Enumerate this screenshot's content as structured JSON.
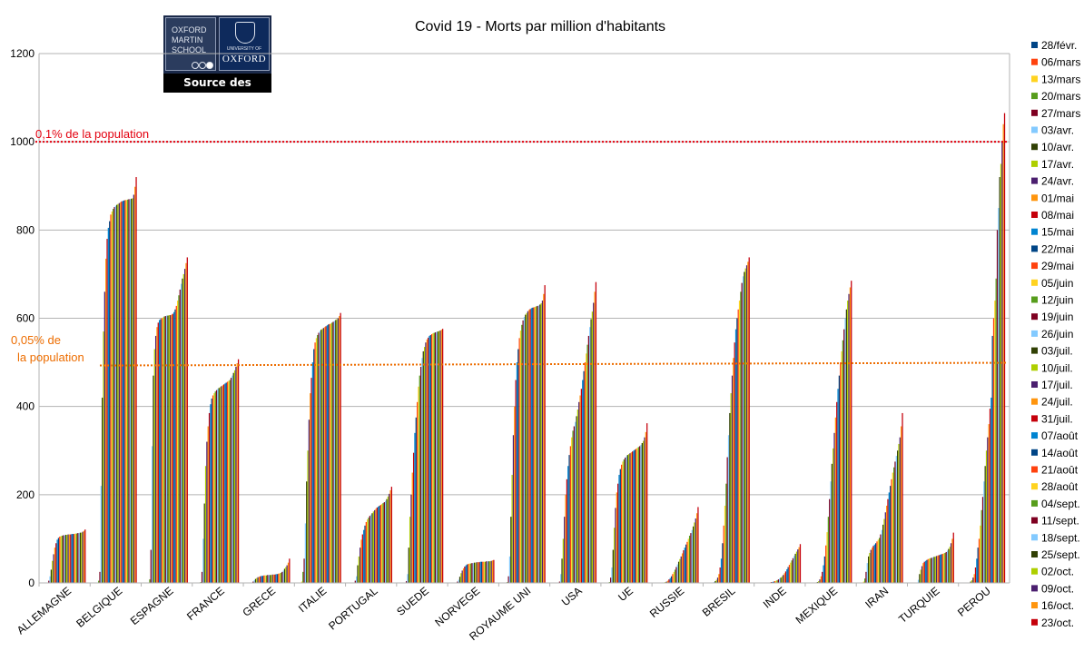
{
  "logo": {
    "oxford_martin_school": "OXFORD\nMARTIN\nSCHOOL",
    "university_small": "UNIVERSITY OF",
    "oxford": "OXFORD",
    "source_label": "Source des données"
  },
  "annotations": {
    "threshold_high": {
      "label": "0,1% de la population",
      "value": 1000,
      "color": "#e3000f"
    },
    "threshold_low": {
      "label_line1": "0,05% de",
      "label_line2": "la population",
      "value": 497,
      "color": "#ed6d00"
    }
  },
  "chart_data": {
    "type": "bar",
    "title": "Covid 19 - Morts par million d'habitants",
    "xlabel": "",
    "ylabel": "",
    "ylim": [
      0,
      1200
    ],
    "yticks": [
      0,
      200,
      400,
      600,
      800,
      1000,
      1200
    ],
    "grid": "horizontal",
    "legend_position": "right",
    "categories": [
      "ALLEMAGNE",
      "BELGIQUE",
      "ESPAGNE",
      "FRANCE",
      "GRECE",
      "ITALIE",
      "PORTUGAL",
      "SUEDE",
      "NORVEGE",
      "ROYAUME UNI",
      "USA",
      "UE",
      "RUSSIE",
      "BRESIL",
      "INDE",
      "MEXIQUE",
      "IRAN",
      "TURQUIE",
      "PEROU"
    ],
    "series_names": [
      "28/févr.",
      "06/mars",
      "13/mars",
      "20/mars",
      "27/mars",
      "03/avr.",
      "10/avr.",
      "17/avr.",
      "24/avr.",
      "01/mai",
      "08/mai",
      "15/mai",
      "22/mai",
      "29/mai",
      "05/juin",
      "12/juin",
      "19/juin",
      "26/juin",
      "03/juil.",
      "10/juil.",
      "17/juil.",
      "24/juil.",
      "31/juil.",
      "07/août",
      "14/août",
      "21/août",
      "28/août",
      "04/sept.",
      "11/sept.",
      "18/sept.",
      "25/sept.",
      "02/oct.",
      "09/oct.",
      "16/oct.",
      "23/oct."
    ],
    "series_colors": [
      "#004586",
      "#ff420e",
      "#ffd320",
      "#579d1c",
      "#7e0021",
      "#83caff",
      "#314004",
      "#aecf00",
      "#4b1f6f",
      "#ff950e",
      "#c5000b",
      "#0084d1"
    ],
    "values": {
      "ALLEMAGNE": [
        0,
        0,
        0,
        1,
        5,
        15,
        30,
        50,
        65,
        80,
        90,
        98,
        102,
        105,
        106,
        107,
        108,
        108,
        109,
        109,
        110,
        110,
        110,
        111,
        111,
        111,
        112,
        112,
        113,
        113,
        114,
        114,
        116,
        118,
        121
      ],
      "BELGIQUE": [
        0,
        0,
        1,
        5,
        25,
        220,
        420,
        570,
        660,
        735,
        780,
        805,
        820,
        835,
        842,
        848,
        852,
        855,
        857,
        859,
        861,
        863,
        865,
        866,
        867,
        868,
        868,
        869,
        870,
        870,
        871,
        872,
        880,
        898,
        920
      ],
      "ESPAGNE": [
        0,
        0,
        0,
        8,
        75,
        310,
        470,
        530,
        560,
        580,
        590,
        596,
        598,
        600,
        602,
        604,
        605,
        606,
        606,
        607,
        607,
        608,
        610,
        614,
        620,
        628,
        640,
        652,
        665,
        678,
        690,
        700,
        712,
        725,
        738
      ],
      "FRANCE": [
        0,
        0,
        0,
        2,
        25,
        100,
        180,
        265,
        320,
        355,
        385,
        405,
        418,
        425,
        430,
        434,
        437,
        440,
        442,
        444,
        446,
        448,
        450,
        452,
        454,
        456,
        458,
        460,
        465,
        470,
        476,
        482,
        490,
        498,
        507
      ],
      "GRECE": [
        0,
        0,
        0,
        1,
        3,
        6,
        9,
        11,
        13,
        14,
        15,
        16,
        16,
        17,
        17,
        17,
        18,
        18,
        18,
        18,
        19,
        19,
        19,
        20,
        20,
        21,
        22,
        23,
        25,
        28,
        32,
        36,
        40,
        46,
        55
      ],
      "ITALIE": [
        0,
        1,
        3,
        25,
        55,
        135,
        230,
        300,
        370,
        430,
        465,
        500,
        530,
        545,
        555,
        562,
        567,
        571,
        574,
        576,
        578,
        580,
        582,
        584,
        586,
        587,
        588,
        590,
        592,
        594,
        596,
        598,
        600,
        605,
        612
      ],
      "PORTUGAL": [
        0,
        0,
        0,
        1,
        5,
        15,
        40,
        60,
        80,
        98,
        110,
        120,
        130,
        138,
        144,
        148,
        152,
        155,
        158,
        162,
        165,
        168,
        171,
        173,
        175,
        177,
        179,
        181,
        183,
        186,
        190,
        196,
        202,
        210,
        218
      ],
      "SUEDE": [
        0,
        0,
        0,
        1,
        4,
        20,
        80,
        150,
        200,
        250,
        295,
        340,
        375,
        410,
        445,
        470,
        490,
        510,
        525,
        535,
        545,
        552,
        556,
        560,
        562,
        564,
        566,
        567,
        568,
        569,
        570,
        571,
        572,
        574,
        576
      ],
      "NORVEGE": [
        0,
        0,
        0,
        1,
        3,
        7,
        14,
        22,
        28,
        33,
        37,
        40,
        42,
        43,
        44,
        44,
        45,
        45,
        46,
        46,
        47,
        47,
        47,
        48,
        48,
        48,
        48,
        48,
        49,
        49,
        49,
        49,
        50,
        51,
        52
      ],
      "ROYAUME UNI": [
        0,
        0,
        0,
        2,
        15,
        60,
        150,
        245,
        335,
        400,
        460,
        500,
        530,
        555,
        572,
        585,
        595,
        603,
        608,
        612,
        616,
        619,
        621,
        623,
        624,
        625,
        626,
        627,
        628,
        629,
        631,
        634,
        640,
        655,
        675
      ],
      "USA": [
        0,
        0,
        0,
        0,
        3,
        20,
        55,
        100,
        150,
        200,
        235,
        265,
        290,
        310,
        330,
        345,
        355,
        365,
        378,
        393,
        410,
        425,
        440,
        460,
        480,
        500,
        520,
        540,
        560,
        580,
        598,
        615,
        635,
        660,
        682
      ],
      "UE": [
        0,
        0,
        0,
        2,
        12,
        35,
        75,
        125,
        170,
        205,
        225,
        245,
        258,
        268,
        275,
        280,
        284,
        287,
        290,
        292,
        294,
        296,
        298,
        300,
        302,
        304,
        306,
        308,
        310,
        313,
        317,
        322,
        330,
        342,
        362
      ],
      "RUSSIE": [
        0,
        0,
        0,
        0,
        0,
        0,
        1,
        2,
        3,
        5,
        8,
        11,
        15,
        20,
        25,
        30,
        36,
        42,
        48,
        54,
        60,
        67,
        74,
        80,
        87,
        93,
        100,
        107,
        113,
        120,
        128,
        137,
        146,
        158,
        172
      ],
      "BRESIL": [
        0,
        0,
        0,
        0,
        1,
        2,
        4,
        7,
        12,
        20,
        35,
        55,
        90,
        130,
        175,
        225,
        285,
        335,
        385,
        430,
        470,
        510,
        545,
        575,
        600,
        620,
        640,
        660,
        680,
        695,
        705,
        713,
        720,
        728,
        738
      ],
      "INDE": [
        0,
        0,
        0,
        0,
        0,
        0,
        0,
        0,
        1,
        1,
        2,
        2,
        3,
        4,
        5,
        6,
        8,
        10,
        12,
        15,
        18,
        22,
        26,
        31,
        36,
        41,
        46,
        51,
        56,
        61,
        66,
        71,
        76,
        81,
        88
      ],
      "MEXIQUE": [
        0,
        0,
        0,
        0,
        0,
        1,
        2,
        4,
        8,
        15,
        25,
        40,
        60,
        85,
        115,
        150,
        190,
        230,
        270,
        305,
        340,
        375,
        410,
        440,
        470,
        500,
        525,
        550,
        575,
        600,
        620,
        640,
        655,
        670,
        685
      ],
      "IRAN": [
        0,
        1,
        3,
        10,
        25,
        45,
        60,
        68,
        75,
        80,
        84,
        87,
        90,
        94,
        98,
        102,
        110,
        120,
        132,
        145,
        160,
        175,
        190,
        205,
        220,
        235,
        250,
        262,
        275,
        288,
        300,
        315,
        330,
        355,
        385
      ],
      "TURQUIE": [
        0,
        0,
        0,
        0,
        1,
        7,
        20,
        30,
        38,
        45,
        48,
        50,
        52,
        54,
        55,
        56,
        57,
        58,
        59,
        60,
        61,
        62,
        63,
        64,
        65,
        66,
        67,
        68,
        70,
        73,
        77,
        82,
        90,
        100,
        114
      ],
      "PEROU": [
        0,
        0,
        0,
        0,
        0,
        1,
        3,
        6,
        12,
        20,
        35,
        55,
        80,
        100,
        130,
        165,
        195,
        230,
        265,
        300,
        330,
        360,
        395,
        420,
        560,
        600,
        640,
        690,
        800,
        850,
        920,
        950,
        1000,
        1040,
        1065
      ]
    }
  }
}
